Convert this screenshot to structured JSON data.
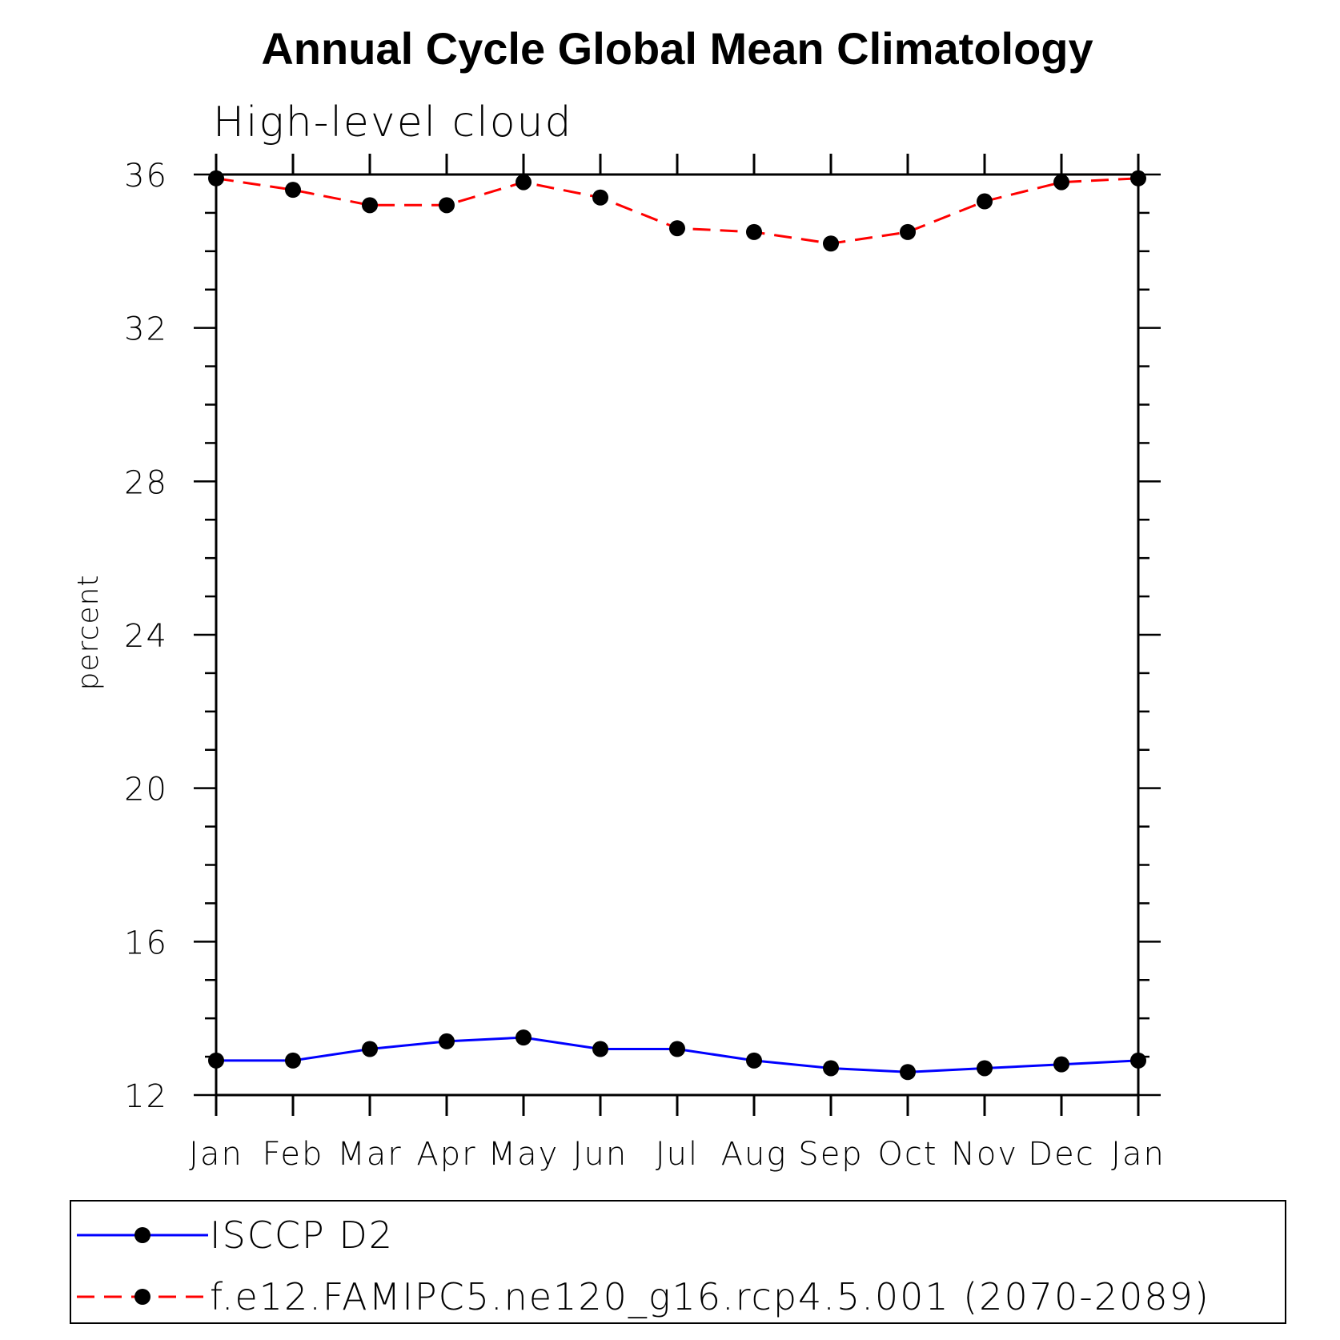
{
  "chart_data": {
    "type": "line",
    "title": "Annual Cycle Global Mean Climatology",
    "subtitle": "High-level cloud",
    "xlabel": "",
    "ylabel": "percent",
    "categories": [
      "Jan",
      "Feb",
      "Mar",
      "Apr",
      "May",
      "Jun",
      "Jul",
      "Aug",
      "Sep",
      "Oct",
      "Nov",
      "Dec",
      "Jan"
    ],
    "ylim": [
      12,
      36
    ],
    "yticks": [
      "12",
      "16",
      "20",
      "24",
      "28",
      "32",
      "36"
    ],
    "grid": false,
    "legend_position": "bottom",
    "series": [
      {
        "name": "ISCCP D2",
        "color": "#0000ff",
        "line_style": "solid",
        "marker": "filled-circle",
        "values": [
          12.9,
          12.9,
          13.2,
          13.4,
          13.5,
          13.2,
          13.2,
          12.9,
          12.7,
          12.6,
          12.7,
          12.8,
          12.9
        ]
      },
      {
        "name": "f.e12.FAMIPC5.ne120_g16.rcp4.5.001 (2070-2089)",
        "color": "#ff0000",
        "line_style": "dashed",
        "marker": "filled-circle",
        "values": [
          35.9,
          35.6,
          35.2,
          35.2,
          35.8,
          35.4,
          34.6,
          34.5,
          34.2,
          34.5,
          35.3,
          35.8,
          35.9
        ]
      }
    ]
  }
}
